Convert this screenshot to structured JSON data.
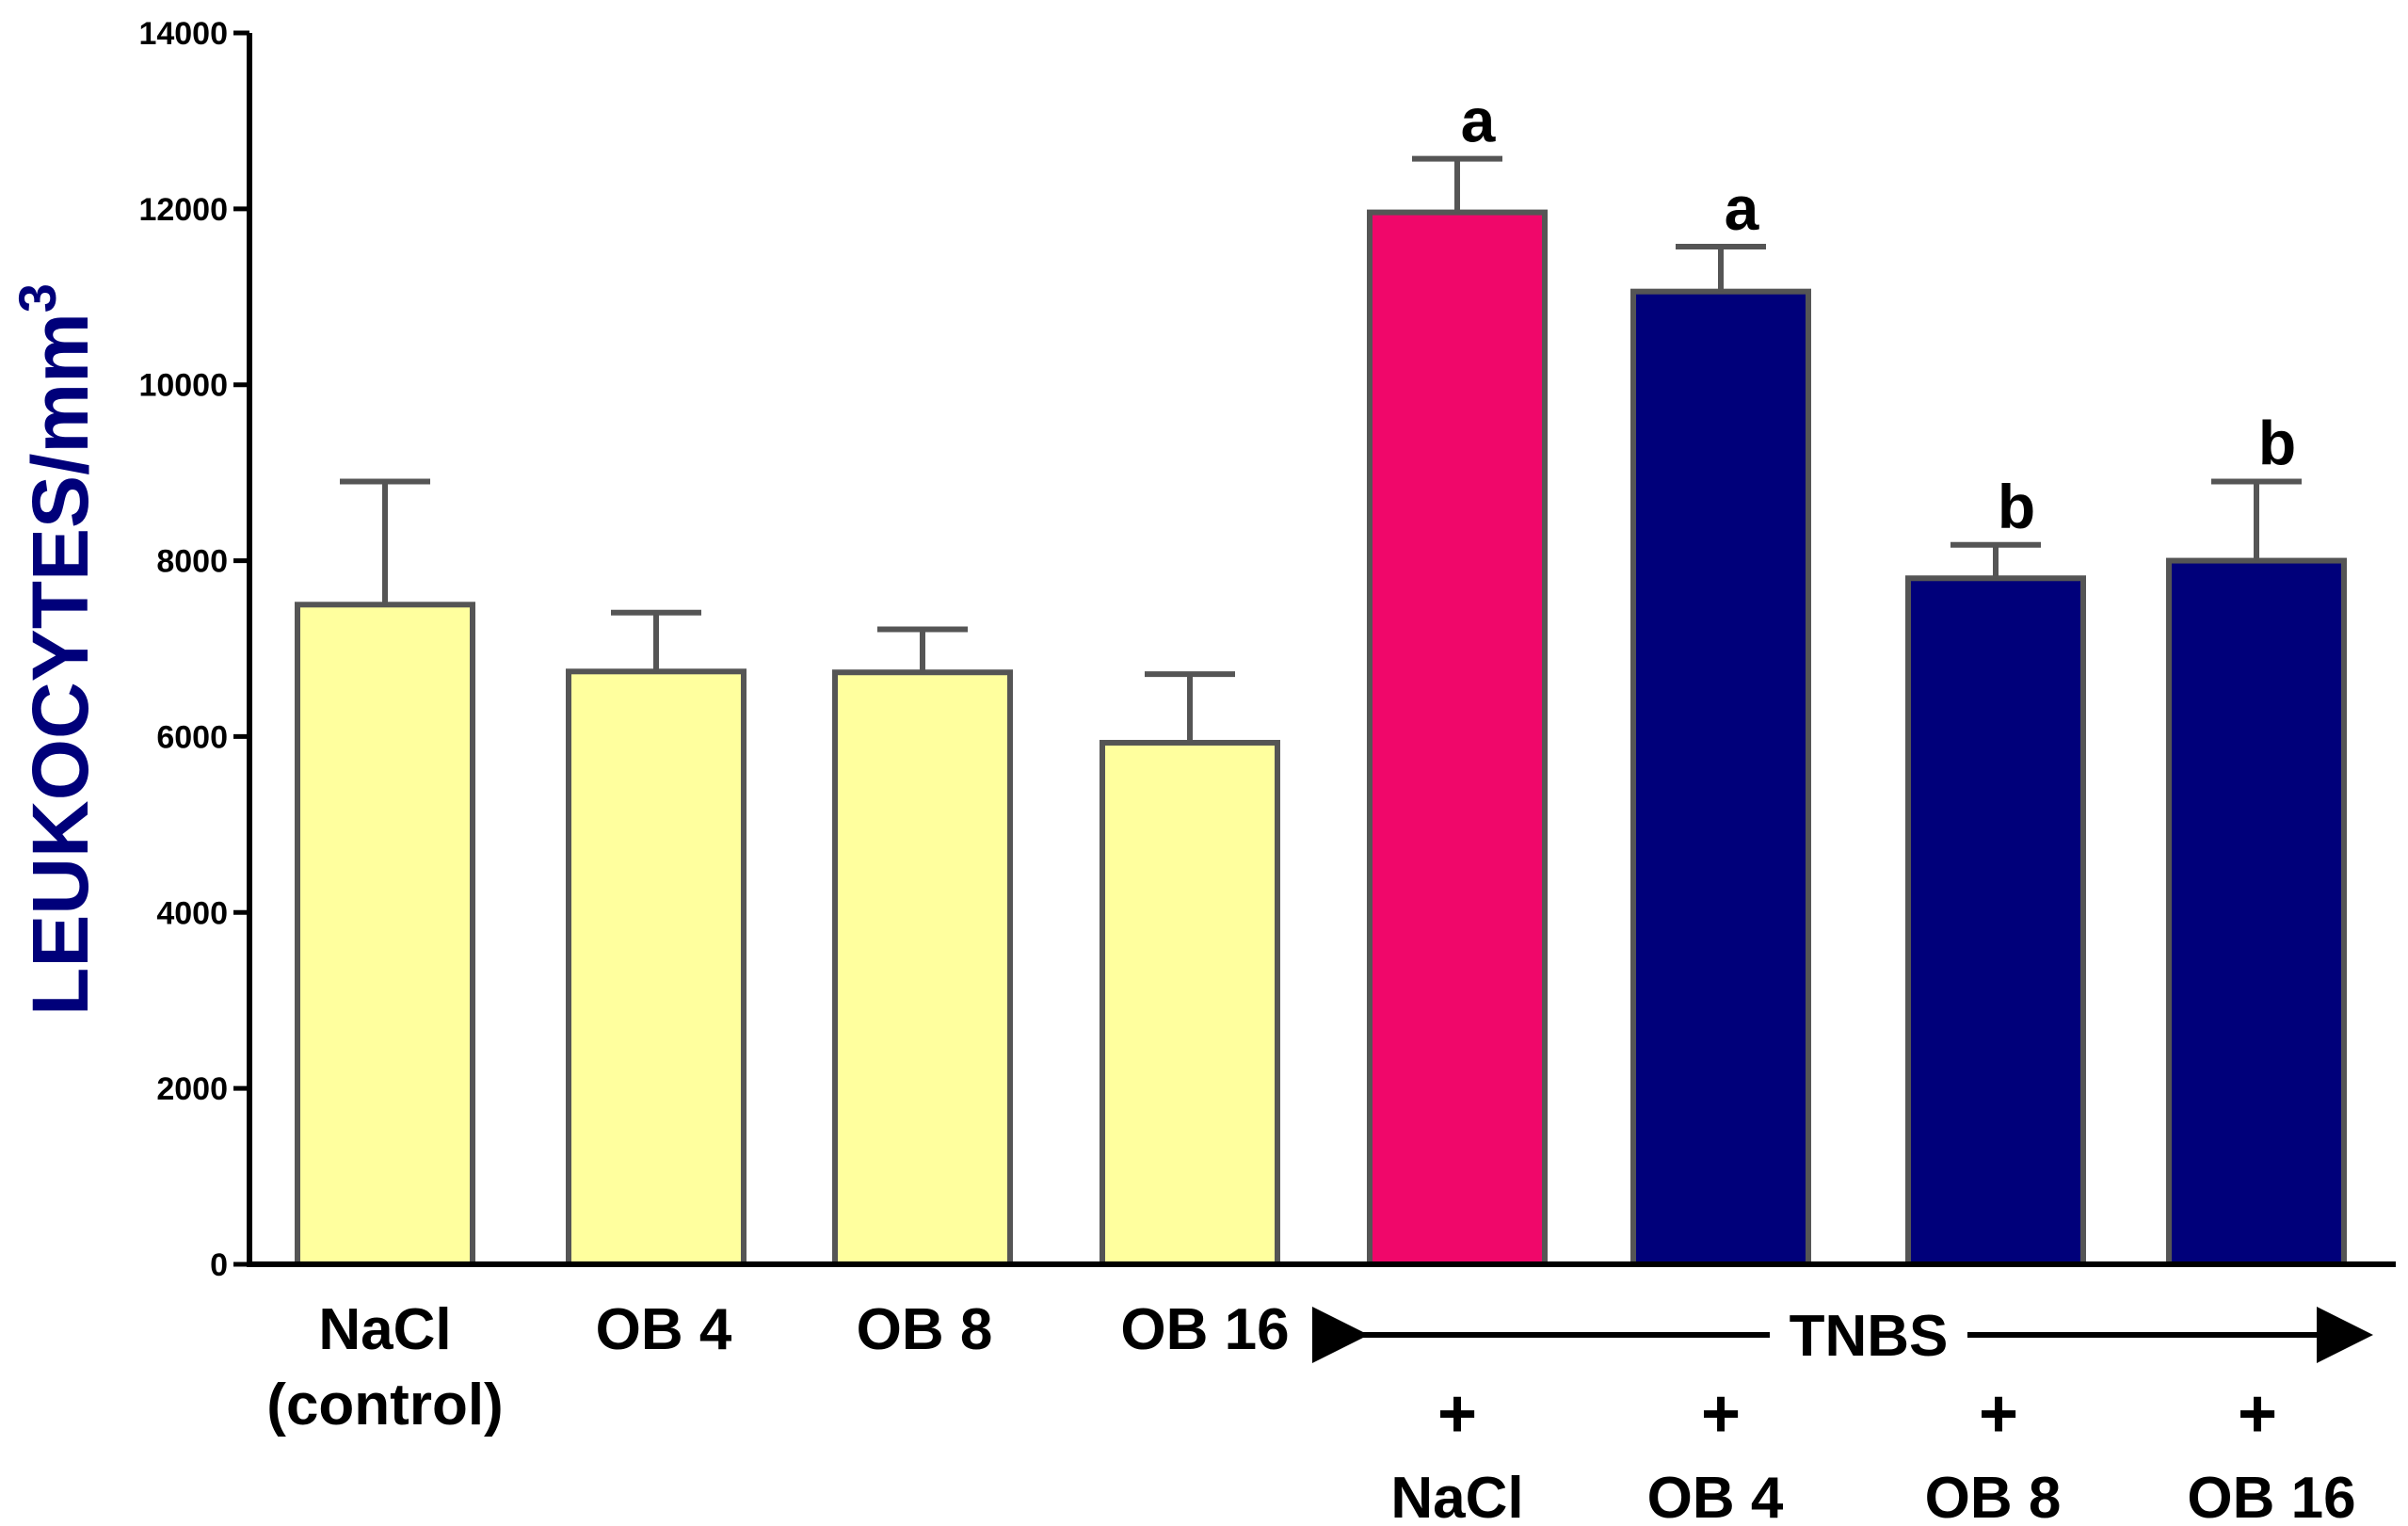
{
  "chart_data": {
    "type": "bar",
    "title": "",
    "xlabel": "",
    "ylabel": "LEUKOCYTES/mm",
    "ylabel_superscript": "3",
    "ylim": [
      0,
      14000
    ],
    "yticks": [
      "0",
      "2000",
      "4000",
      "6000",
      "8000",
      "10000",
      "12000",
      "14000"
    ],
    "ytick_values": [
      0,
      2000,
      4000,
      6000,
      8000,
      10000,
      12000,
      14000
    ],
    "categories": [
      "NaCl (control)",
      "OB 4",
      "OB 8",
      "OB 16",
      "TNBS + NaCl",
      "TNBS + OB 4",
      "TNBS + OB 8",
      "TNBS + OB 16"
    ],
    "values": [
      7500,
      6740,
      6730,
      5930,
      11960,
      11060,
      7800,
      8000
    ],
    "errors": [
      1400,
      670,
      490,
      780,
      610,
      510,
      380,
      900
    ],
    "colors": [
      "#ffff9e",
      "#ffff9e",
      "#ffff9e",
      "#ffff9e",
      "#f0076a",
      "#00007a",
      "#00007a",
      "#00007a"
    ],
    "edge_color": "#555555",
    "significance": [
      "",
      "",
      "",
      "",
      "a",
      "a",
      "b",
      "b"
    ],
    "axis_labels": {
      "group1": [
        [
          "NaCl",
          "(control)"
        ],
        [
          "OB 4"
        ],
        [
          "OB 8"
        ],
        [
          "OB 16"
        ]
      ],
      "group_label": "TNBS",
      "plus_sign": "+",
      "group2": [
        "NaCl",
        "OB 4",
        "OB 8",
        "OB 16"
      ]
    }
  }
}
